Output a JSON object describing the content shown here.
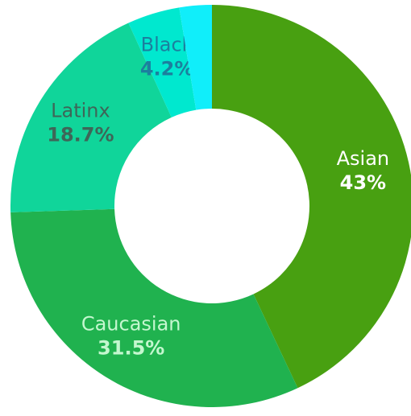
{
  "chart_data": {
    "type": "donut",
    "categories": [
      "Asian",
      "Caucasian",
      "Latinx",
      "Black",
      null
    ],
    "values": [
      43,
      31.5,
      18.7,
      4.2,
      2.6
    ],
    "value_labels": [
      "43%",
      "31.5%",
      "18.7%",
      "4.2%",
      null
    ],
    "colors": [
      "#48a011",
      "#20b24f",
      "#10d59a",
      "#00e8cf",
      "#10eefa"
    ],
    "label_colors": [
      "#ffffff",
      "#c4f7cf",
      "#3e6658",
      "#1c7f9e",
      null
    ]
  }
}
